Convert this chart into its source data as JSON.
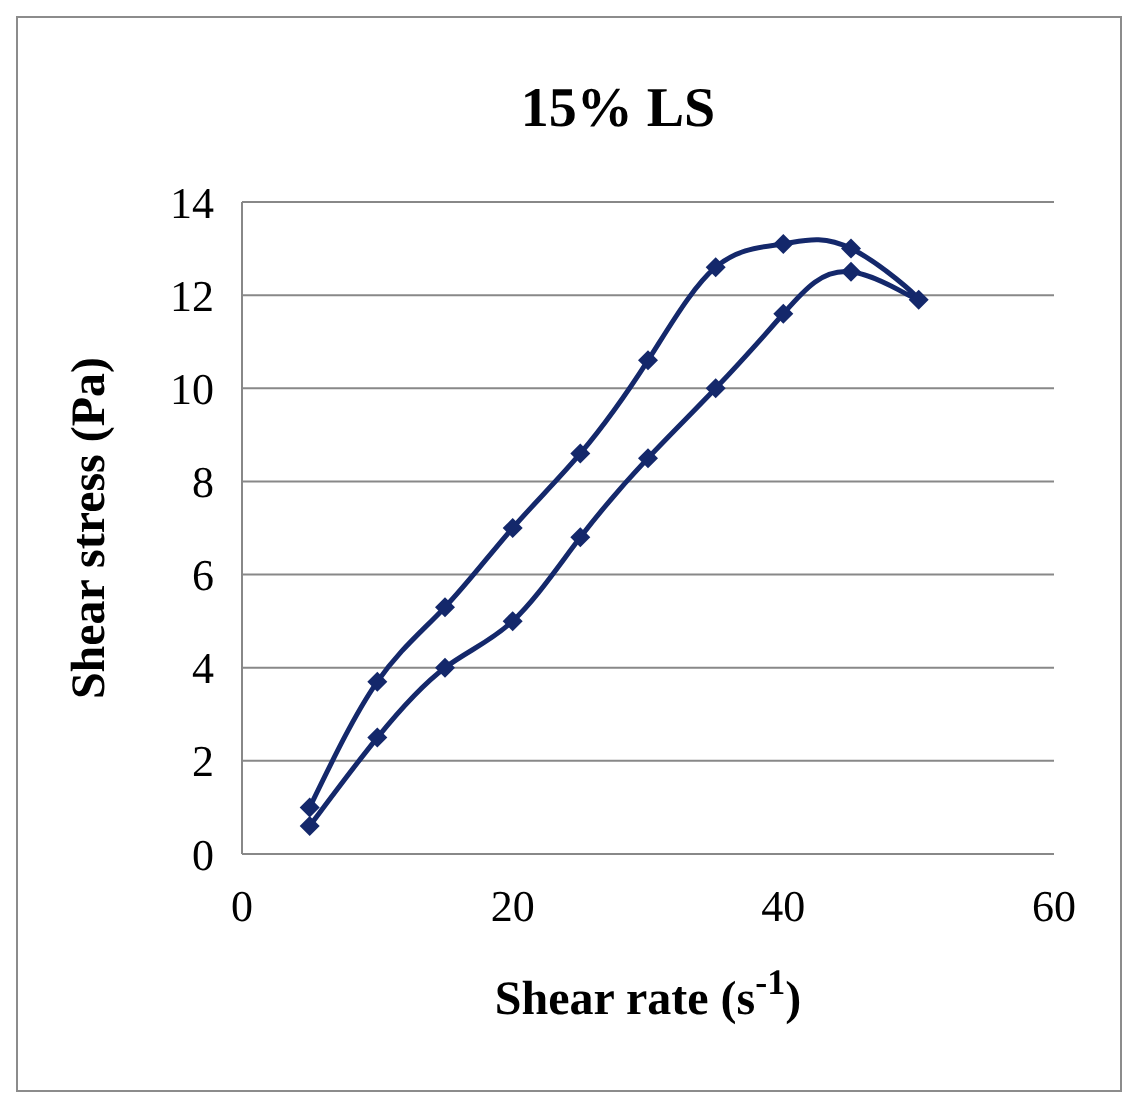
{
  "chart_data": {
    "type": "line",
    "title": "15% LS",
    "xlabel": "Shear rate (s$^{-1}$)",
    "ylabel": "Shear stress (Pa)",
    "x": [
      5,
      10,
      15,
      20,
      25,
      30,
      35,
      40,
      45,
      50,
      45,
      40,
      35,
      30,
      25,
      20,
      15,
      10,
      5
    ],
    "series": [
      {
        "color": "#14286b",
        "values": [
          0.6,
          2.5,
          4,
          5,
          6.8,
          8.5,
          10,
          11.6,
          12.5,
          11.9,
          13,
          13.1,
          12.6,
          10.6,
          8.6,
          7,
          5.3,
          3.7,
          1
        ]
      }
    ],
    "xlim": [
      0,
      60
    ],
    "xticks": [
      0,
      20,
      40,
      60
    ],
    "ylim": [
      0,
      14
    ],
    "yticks": [
      0,
      2,
      4,
      6,
      8,
      10,
      12,
      14
    ],
    "grid": "y",
    "legend": false,
    "marker": "diamond",
    "line_style": "solid"
  }
}
